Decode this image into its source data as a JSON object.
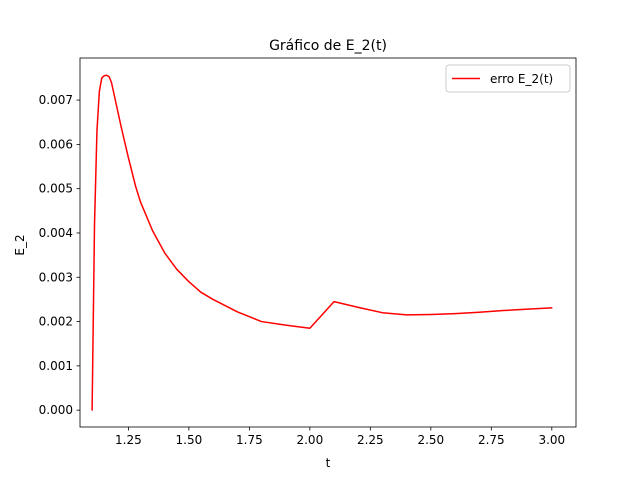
{
  "chart_data": {
    "type": "line",
    "title": "Gráfico de E_2(t)",
    "xlabel": "t",
    "ylabel": "E_2",
    "xlim": [
      1.05,
      3.1
    ],
    "ylim": [
      -0.00038,
      0.00795
    ],
    "xticks": [
      1.25,
      1.5,
      1.75,
      2.0,
      2.25,
      2.5,
      2.75,
      3.0
    ],
    "xtick_labels": [
      "1.25",
      "1.50",
      "1.75",
      "2.00",
      "2.25",
      "2.50",
      "2.75",
      "3.00"
    ],
    "yticks": [
      0.0,
      0.001,
      0.002,
      0.003,
      0.004,
      0.005,
      0.006,
      0.007
    ],
    "ytick_labels": [
      "0.000",
      "0.001",
      "0.002",
      "0.003",
      "0.004",
      "0.005",
      "0.006",
      "0.007"
    ],
    "grid": false,
    "legend_position": "top-right",
    "series": [
      {
        "name": "erro E_2(t)",
        "color": "#ff0000",
        "x": [
          1.1,
          1.11,
          1.12,
          1.13,
          1.14,
          1.15,
          1.16,
          1.17,
          1.18,
          1.2,
          1.22,
          1.25,
          1.28,
          1.3,
          1.35,
          1.4,
          1.45,
          1.5,
          1.55,
          1.6,
          1.7,
          1.8,
          1.9,
          2.0,
          2.1,
          2.2,
          2.3,
          2.4,
          2.5,
          2.6,
          2.7,
          2.8,
          2.9,
          3.0
        ],
        "y": [
          0.0,
          0.0042,
          0.0063,
          0.0072,
          0.0075,
          0.00755,
          0.00756,
          0.00753,
          0.0074,
          0.0069,
          0.0064,
          0.0057,
          0.00505,
          0.0047,
          0.00405,
          0.00355,
          0.00318,
          0.0029,
          0.00266,
          0.0025,
          0.00222,
          0.002,
          0.00192,
          0.00185,
          0.00245,
          0.00232,
          0.0022,
          0.00215,
          0.00216,
          0.00218,
          0.00221,
          0.00225,
          0.00228,
          0.00231
        ]
      }
    ]
  }
}
